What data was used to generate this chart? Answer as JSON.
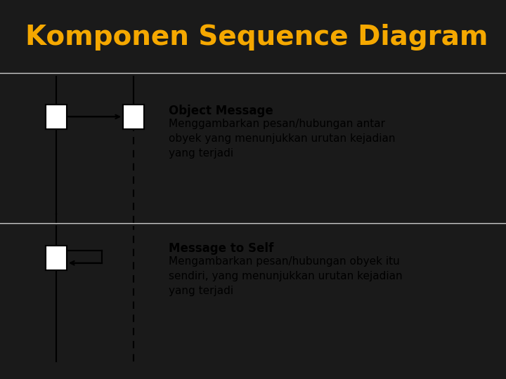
{
  "title": "Komponen Sequence Diagram",
  "title_color": "#F5A800",
  "title_fontsize": 28,
  "bg_color": "#1a1a1a",
  "content_bg": "#ffffff",
  "header_line_color": "#cccccc",
  "diagram_color": "#000000",
  "bold_label_1": "Object Message",
  "text_1": "Menggambarkan pesan/hubungan antar\nobyek yang menunjukkan urutan kejadian\nyang terjadi",
  "bold_label_2": "Message to Self",
  "text_2": "Mengambarkan pesan/hubungan obyek itu\nsendiri, yang menunjukkan urutan kejadian\nyang terjadi",
  "label_fontsize": 12,
  "text_fontsize": 11
}
